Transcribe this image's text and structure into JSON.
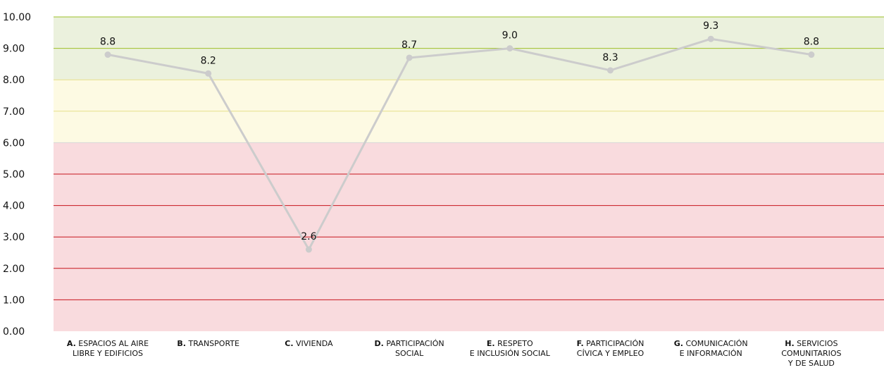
{
  "chart_data": {
    "type": "line",
    "categories": [
      {
        "prefix": "A.",
        "lines": [
          "ESPACIOS AL AIRE",
          "LIBRE Y EDIFICIOS"
        ]
      },
      {
        "prefix": "B.",
        "lines": [
          "TRANSPORTE"
        ]
      },
      {
        "prefix": "C.",
        "lines": [
          "VIVIENDA"
        ]
      },
      {
        "prefix": "D.",
        "lines": [
          "PARTICIPACIÓN",
          "SOCIAL"
        ]
      },
      {
        "prefix": "E.",
        "lines": [
          "RESPETO",
          "E INCLUSIÓN SOCIAL"
        ]
      },
      {
        "prefix": "F.",
        "lines": [
          "PARTICIPACIÓN",
          "CÍVICA Y EMPLEO"
        ]
      },
      {
        "prefix": "G.",
        "lines": [
          "COMUNICACIÓN",
          "E INFORMACIÓN"
        ]
      },
      {
        "prefix": "H.",
        "lines": [
          "SERVICIOS",
          "COMUNITARIOS",
          "Y DE SALUD"
        ]
      }
    ],
    "values": [
      8.8,
      8.2,
      2.6,
      8.7,
      9.0,
      8.3,
      9.3,
      8.8
    ],
    "data_labels": [
      "8.8",
      "8.2",
      "2.6",
      "8.7",
      "9.0",
      "8.3",
      "9.3",
      "8.8"
    ],
    "ylim": [
      0,
      10
    ],
    "yticks": [
      "0.00",
      "1.00",
      "2.00",
      "3.00",
      "4.00",
      "5.00",
      "6.00",
      "7.00",
      "8.00",
      "9.00",
      "10.00"
    ],
    "bands": [
      {
        "from": 0,
        "to": 6,
        "color": "#f9dbde",
        "line_color": "#c8161d"
      },
      {
        "from": 6,
        "to": 8,
        "color": "#fdfae3",
        "line_color": "#e6e08a"
      },
      {
        "from": 8,
        "to": 10,
        "color": "#ebf1dd",
        "line_color": "#9ec028"
      }
    ],
    "series_color": "#cccccc",
    "grid": true
  }
}
